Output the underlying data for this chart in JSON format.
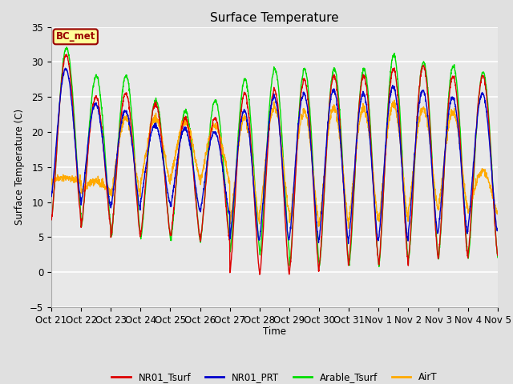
{
  "title": "Surface Temperature",
  "ylabel": "Surface Temperature (C)",
  "xlabel": "Time",
  "ylim": [
    -5,
    35
  ],
  "background_color": "#e0e0e0",
  "plot_bg_color": "#e8e8e8",
  "grid_color": "white",
  "annotation_text": "BC_met",
  "annotation_bg": "#ffff99",
  "annotation_border": "#990000",
  "series": {
    "NR01_Tsurf": {
      "color": "#dd0000",
      "lw": 1.0
    },
    "NR01_PRT": {
      "color": "#0000cc",
      "lw": 1.0
    },
    "Arable_Tsurf": {
      "color": "#00dd00",
      "lw": 1.0
    },
    "AirT": {
      "color": "#ffaa00",
      "lw": 1.0
    }
  },
  "xtick_labels": [
    "Oct 21",
    "Oct 22",
    "Oct 23",
    "Oct 24",
    "Oct 25",
    "Oct 26",
    "Oct 27",
    "Oct 28",
    "Oct 29",
    "Oct 30",
    "Oct 31",
    "Nov 1",
    "Nov 2",
    "Nov 3",
    "Nov 4",
    "Nov 5"
  ],
  "num_days": 15,
  "pts_per_day": 144,
  "figsize": [
    6.4,
    4.8
  ],
  "dpi": 100
}
